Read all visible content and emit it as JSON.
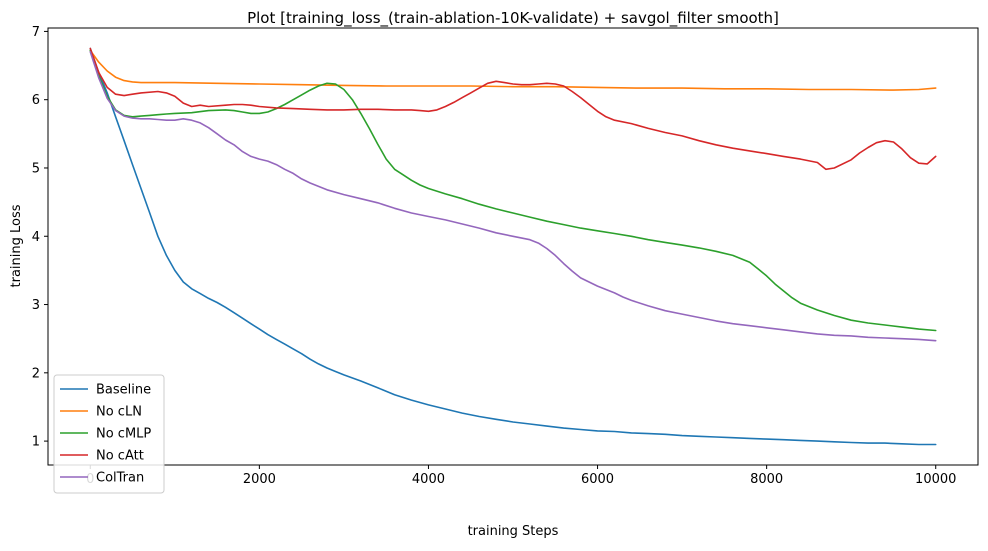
{
  "chart_data": {
    "type": "line",
    "title": "Plot [training_loss_(train-ablation-10K-validate) + savgol_filter smooth]",
    "xlabel": "training Steps",
    "ylabel": "training Loss",
    "xlim": [
      -500,
      10500
    ],
    "ylim": [
      0.65,
      7.05
    ],
    "xticks": [
      0,
      2000,
      4000,
      6000,
      8000,
      10000
    ],
    "xtick_labels": [
      "0",
      "2000",
      "4000",
      "6000",
      "8000",
      "10000"
    ],
    "yticks": [
      1,
      2,
      3,
      4,
      5,
      6,
      7
    ],
    "ytick_labels": [
      "1",
      "2",
      "3",
      "4",
      "5",
      "6",
      "7"
    ],
    "grid": false,
    "legend_position": "lower-left",
    "series": [
      {
        "name": "Baseline",
        "color": "#1f77b4",
        "points": [
          [
            0,
            6.75
          ],
          [
            100,
            6.4
          ],
          [
            200,
            6.1
          ],
          [
            300,
            5.75
          ],
          [
            400,
            5.4
          ],
          [
            500,
            5.05
          ],
          [
            600,
            4.7
          ],
          [
            700,
            4.35
          ],
          [
            800,
            4.0
          ],
          [
            900,
            3.72
          ],
          [
            1000,
            3.5
          ],
          [
            1100,
            3.33
          ],
          [
            1200,
            3.23
          ],
          [
            1300,
            3.16
          ],
          [
            1400,
            3.09
          ],
          [
            1500,
            3.03
          ],
          [
            1600,
            2.96
          ],
          [
            1700,
            2.88
          ],
          [
            1800,
            2.8
          ],
          [
            1900,
            2.72
          ],
          [
            2000,
            2.64
          ],
          [
            2100,
            2.56
          ],
          [
            2200,
            2.49
          ],
          [
            2300,
            2.42
          ],
          [
            2400,
            2.35
          ],
          [
            2500,
            2.28
          ],
          [
            2600,
            2.2
          ],
          [
            2700,
            2.13
          ],
          [
            2800,
            2.07
          ],
          [
            2900,
            2.02
          ],
          [
            3000,
            1.97
          ],
          [
            3200,
            1.88
          ],
          [
            3400,
            1.78
          ],
          [
            3600,
            1.68
          ],
          [
            3800,
            1.6
          ],
          [
            4000,
            1.53
          ],
          [
            4200,
            1.47
          ],
          [
            4400,
            1.41
          ],
          [
            4600,
            1.36
          ],
          [
            4800,
            1.32
          ],
          [
            5000,
            1.28
          ],
          [
            5200,
            1.25
          ],
          [
            5400,
            1.22
          ],
          [
            5600,
            1.19
          ],
          [
            5800,
            1.17
          ],
          [
            6000,
            1.15
          ],
          [
            6200,
            1.14
          ],
          [
            6400,
            1.12
          ],
          [
            6600,
            1.11
          ],
          [
            6800,
            1.1
          ],
          [
            7000,
            1.08
          ],
          [
            7200,
            1.07
          ],
          [
            7400,
            1.06
          ],
          [
            7600,
            1.05
          ],
          [
            7800,
            1.04
          ],
          [
            8000,
            1.03
          ],
          [
            8200,
            1.02
          ],
          [
            8400,
            1.01
          ],
          [
            8600,
            1.0
          ],
          [
            8800,
            0.99
          ],
          [
            9000,
            0.98
          ],
          [
            9200,
            0.97
          ],
          [
            9400,
            0.97
          ],
          [
            9600,
            0.96
          ],
          [
            9800,
            0.95
          ],
          [
            10000,
            0.95
          ]
        ]
      },
      {
        "name": "No cLN",
        "color": "#ff7f0e",
        "points": [
          [
            0,
            6.72
          ],
          [
            100,
            6.55
          ],
          [
            200,
            6.42
          ],
          [
            300,
            6.33
          ],
          [
            400,
            6.28
          ],
          [
            500,
            6.26
          ],
          [
            600,
            6.25
          ],
          [
            800,
            6.25
          ],
          [
            1000,
            6.25
          ],
          [
            1500,
            6.24
          ],
          [
            2000,
            6.23
          ],
          [
            2500,
            6.22
          ],
          [
            3000,
            6.21
          ],
          [
            3500,
            6.2
          ],
          [
            4000,
            6.2
          ],
          [
            4500,
            6.2
          ],
          [
            5000,
            6.19
          ],
          [
            5500,
            6.19
          ],
          [
            6000,
            6.18
          ],
          [
            6500,
            6.17
          ],
          [
            7000,
            6.17
          ],
          [
            7500,
            6.16
          ],
          [
            8000,
            6.16
          ],
          [
            8500,
            6.15
          ],
          [
            9000,
            6.15
          ],
          [
            9500,
            6.14
          ],
          [
            9800,
            6.15
          ],
          [
            10000,
            6.17
          ]
        ]
      },
      {
        "name": "No cMLP",
        "color": "#2ca02c",
        "points": [
          [
            0,
            6.72
          ],
          [
            100,
            6.35
          ],
          [
            200,
            6.05
          ],
          [
            300,
            5.85
          ],
          [
            400,
            5.77
          ],
          [
            500,
            5.75
          ],
          [
            600,
            5.76
          ],
          [
            700,
            5.77
          ],
          [
            800,
            5.78
          ],
          [
            900,
            5.79
          ],
          [
            1000,
            5.8
          ],
          [
            1200,
            5.81
          ],
          [
            1400,
            5.84
          ],
          [
            1600,
            5.85
          ],
          [
            1700,
            5.84
          ],
          [
            1800,
            5.82
          ],
          [
            1900,
            5.8
          ],
          [
            2000,
            5.8
          ],
          [
            2100,
            5.82
          ],
          [
            2200,
            5.87
          ],
          [
            2300,
            5.93
          ],
          [
            2400,
            6.0
          ],
          [
            2500,
            6.07
          ],
          [
            2600,
            6.14
          ],
          [
            2700,
            6.2
          ],
          [
            2800,
            6.24
          ],
          [
            2900,
            6.23
          ],
          [
            3000,
            6.15
          ],
          [
            3100,
            6.0
          ],
          [
            3200,
            5.8
          ],
          [
            3300,
            5.58
          ],
          [
            3400,
            5.35
          ],
          [
            3500,
            5.13
          ],
          [
            3600,
            4.98
          ],
          [
            3700,
            4.9
          ],
          [
            3800,
            4.82
          ],
          [
            3900,
            4.75
          ],
          [
            4000,
            4.7
          ],
          [
            4200,
            4.62
          ],
          [
            4400,
            4.55
          ],
          [
            4600,
            4.47
          ],
          [
            4800,
            4.4
          ],
          [
            5000,
            4.34
          ],
          [
            5200,
            4.28
          ],
          [
            5400,
            4.22
          ],
          [
            5600,
            4.17
          ],
          [
            5800,
            4.12
          ],
          [
            6000,
            4.08
          ],
          [
            6200,
            4.04
          ],
          [
            6400,
            4.0
          ],
          [
            6600,
            3.95
          ],
          [
            6800,
            3.91
          ],
          [
            7000,
            3.87
          ],
          [
            7200,
            3.83
          ],
          [
            7400,
            3.78
          ],
          [
            7600,
            3.72
          ],
          [
            7800,
            3.62
          ],
          [
            7900,
            3.52
          ],
          [
            8000,
            3.42
          ],
          [
            8100,
            3.3
          ],
          [
            8200,
            3.2
          ],
          [
            8300,
            3.1
          ],
          [
            8400,
            3.02
          ],
          [
            8600,
            2.92
          ],
          [
            8800,
            2.84
          ],
          [
            9000,
            2.77
          ],
          [
            9200,
            2.73
          ],
          [
            9400,
            2.7
          ],
          [
            9600,
            2.67
          ],
          [
            9800,
            2.64
          ],
          [
            10000,
            2.62
          ]
        ]
      },
      {
        "name": "No cAtt",
        "color": "#d62728",
        "points": [
          [
            0,
            6.75
          ],
          [
            100,
            6.4
          ],
          [
            200,
            6.18
          ],
          [
            300,
            6.08
          ],
          [
            400,
            6.06
          ],
          [
            500,
            6.08
          ],
          [
            600,
            6.1
          ],
          [
            800,
            6.12
          ],
          [
            900,
            6.1
          ],
          [
            1000,
            6.05
          ],
          [
            1100,
            5.95
          ],
          [
            1200,
            5.9
          ],
          [
            1300,
            5.92
          ],
          [
            1400,
            5.9
          ],
          [
            1600,
            5.92
          ],
          [
            1700,
            5.93
          ],
          [
            1800,
            5.93
          ],
          [
            1900,
            5.92
          ],
          [
            2000,
            5.9
          ],
          [
            2200,
            5.88
          ],
          [
            2400,
            5.87
          ],
          [
            2600,
            5.86
          ],
          [
            2800,
            5.85
          ],
          [
            3000,
            5.85
          ],
          [
            3200,
            5.86
          ],
          [
            3400,
            5.86
          ],
          [
            3600,
            5.85
          ],
          [
            3800,
            5.85
          ],
          [
            3900,
            5.84
          ],
          [
            4000,
            5.83
          ],
          [
            4100,
            5.85
          ],
          [
            4200,
            5.9
          ],
          [
            4300,
            5.96
          ],
          [
            4400,
            6.03
          ],
          [
            4500,
            6.1
          ],
          [
            4600,
            6.17
          ],
          [
            4700,
            6.24
          ],
          [
            4800,
            6.27
          ],
          [
            4900,
            6.25
          ],
          [
            5000,
            6.23
          ],
          [
            5100,
            6.22
          ],
          [
            5200,
            6.22
          ],
          [
            5300,
            6.23
          ],
          [
            5400,
            6.24
          ],
          [
            5500,
            6.23
          ],
          [
            5600,
            6.2
          ],
          [
            5700,
            6.12
          ],
          [
            5800,
            6.03
          ],
          [
            5900,
            5.93
          ],
          [
            6000,
            5.83
          ],
          [
            6100,
            5.75
          ],
          [
            6200,
            5.7
          ],
          [
            6400,
            5.65
          ],
          [
            6600,
            5.58
          ],
          [
            6800,
            5.52
          ],
          [
            7000,
            5.47
          ],
          [
            7200,
            5.4
          ],
          [
            7400,
            5.34
          ],
          [
            7600,
            5.29
          ],
          [
            7800,
            5.25
          ],
          [
            8000,
            5.21
          ],
          [
            8200,
            5.17
          ],
          [
            8400,
            5.13
          ],
          [
            8600,
            5.08
          ],
          [
            8700,
            4.98
          ],
          [
            8800,
            5.0
          ],
          [
            9000,
            5.12
          ],
          [
            9100,
            5.22
          ],
          [
            9200,
            5.3
          ],
          [
            9300,
            5.37
          ],
          [
            9400,
            5.4
          ],
          [
            9500,
            5.38
          ],
          [
            9600,
            5.28
          ],
          [
            9700,
            5.15
          ],
          [
            9800,
            5.07
          ],
          [
            9900,
            5.06
          ],
          [
            10000,
            5.17
          ]
        ]
      },
      {
        "name": "ColTran",
        "color": "#9467bd",
        "points": [
          [
            0,
            6.7
          ],
          [
            100,
            6.32
          ],
          [
            200,
            6.02
          ],
          [
            300,
            5.84
          ],
          [
            400,
            5.76
          ],
          [
            500,
            5.73
          ],
          [
            600,
            5.72
          ],
          [
            700,
            5.72
          ],
          [
            800,
            5.71
          ],
          [
            900,
            5.7
          ],
          [
            1000,
            5.7
          ],
          [
            1100,
            5.72
          ],
          [
            1200,
            5.7
          ],
          [
            1300,
            5.66
          ],
          [
            1400,
            5.59
          ],
          [
            1500,
            5.5
          ],
          [
            1600,
            5.41
          ],
          [
            1700,
            5.34
          ],
          [
            1800,
            5.24
          ],
          [
            1900,
            5.17
          ],
          [
            2000,
            5.13
          ],
          [
            2100,
            5.1
          ],
          [
            2200,
            5.05
          ],
          [
            2300,
            4.98
          ],
          [
            2400,
            4.92
          ],
          [
            2500,
            4.84
          ],
          [
            2600,
            4.78
          ],
          [
            2800,
            4.68
          ],
          [
            3000,
            4.61
          ],
          [
            3200,
            4.55
          ],
          [
            3400,
            4.49
          ],
          [
            3600,
            4.41
          ],
          [
            3800,
            4.34
          ],
          [
            4000,
            4.29
          ],
          [
            4200,
            4.24
          ],
          [
            4400,
            4.18
          ],
          [
            4600,
            4.12
          ],
          [
            4800,
            4.05
          ],
          [
            5000,
            4.0
          ],
          [
            5200,
            3.95
          ],
          [
            5300,
            3.9
          ],
          [
            5400,
            3.82
          ],
          [
            5500,
            3.72
          ],
          [
            5600,
            3.6
          ],
          [
            5700,
            3.49
          ],
          [
            5800,
            3.39
          ],
          [
            6000,
            3.27
          ],
          [
            6200,
            3.17
          ],
          [
            6300,
            3.11
          ],
          [
            6400,
            3.06
          ],
          [
            6600,
            2.98
          ],
          [
            6800,
            2.91
          ],
          [
            7000,
            2.86
          ],
          [
            7200,
            2.81
          ],
          [
            7400,
            2.76
          ],
          [
            7600,
            2.72
          ],
          [
            7800,
            2.69
          ],
          [
            8000,
            2.66
          ],
          [
            8200,
            2.63
          ],
          [
            8400,
            2.6
          ],
          [
            8600,
            2.57
          ],
          [
            8800,
            2.55
          ],
          [
            9000,
            2.54
          ],
          [
            9200,
            2.52
          ],
          [
            9400,
            2.51
          ],
          [
            9600,
            2.5
          ],
          [
            9800,
            2.49
          ],
          [
            10000,
            2.47
          ]
        ]
      }
    ]
  }
}
